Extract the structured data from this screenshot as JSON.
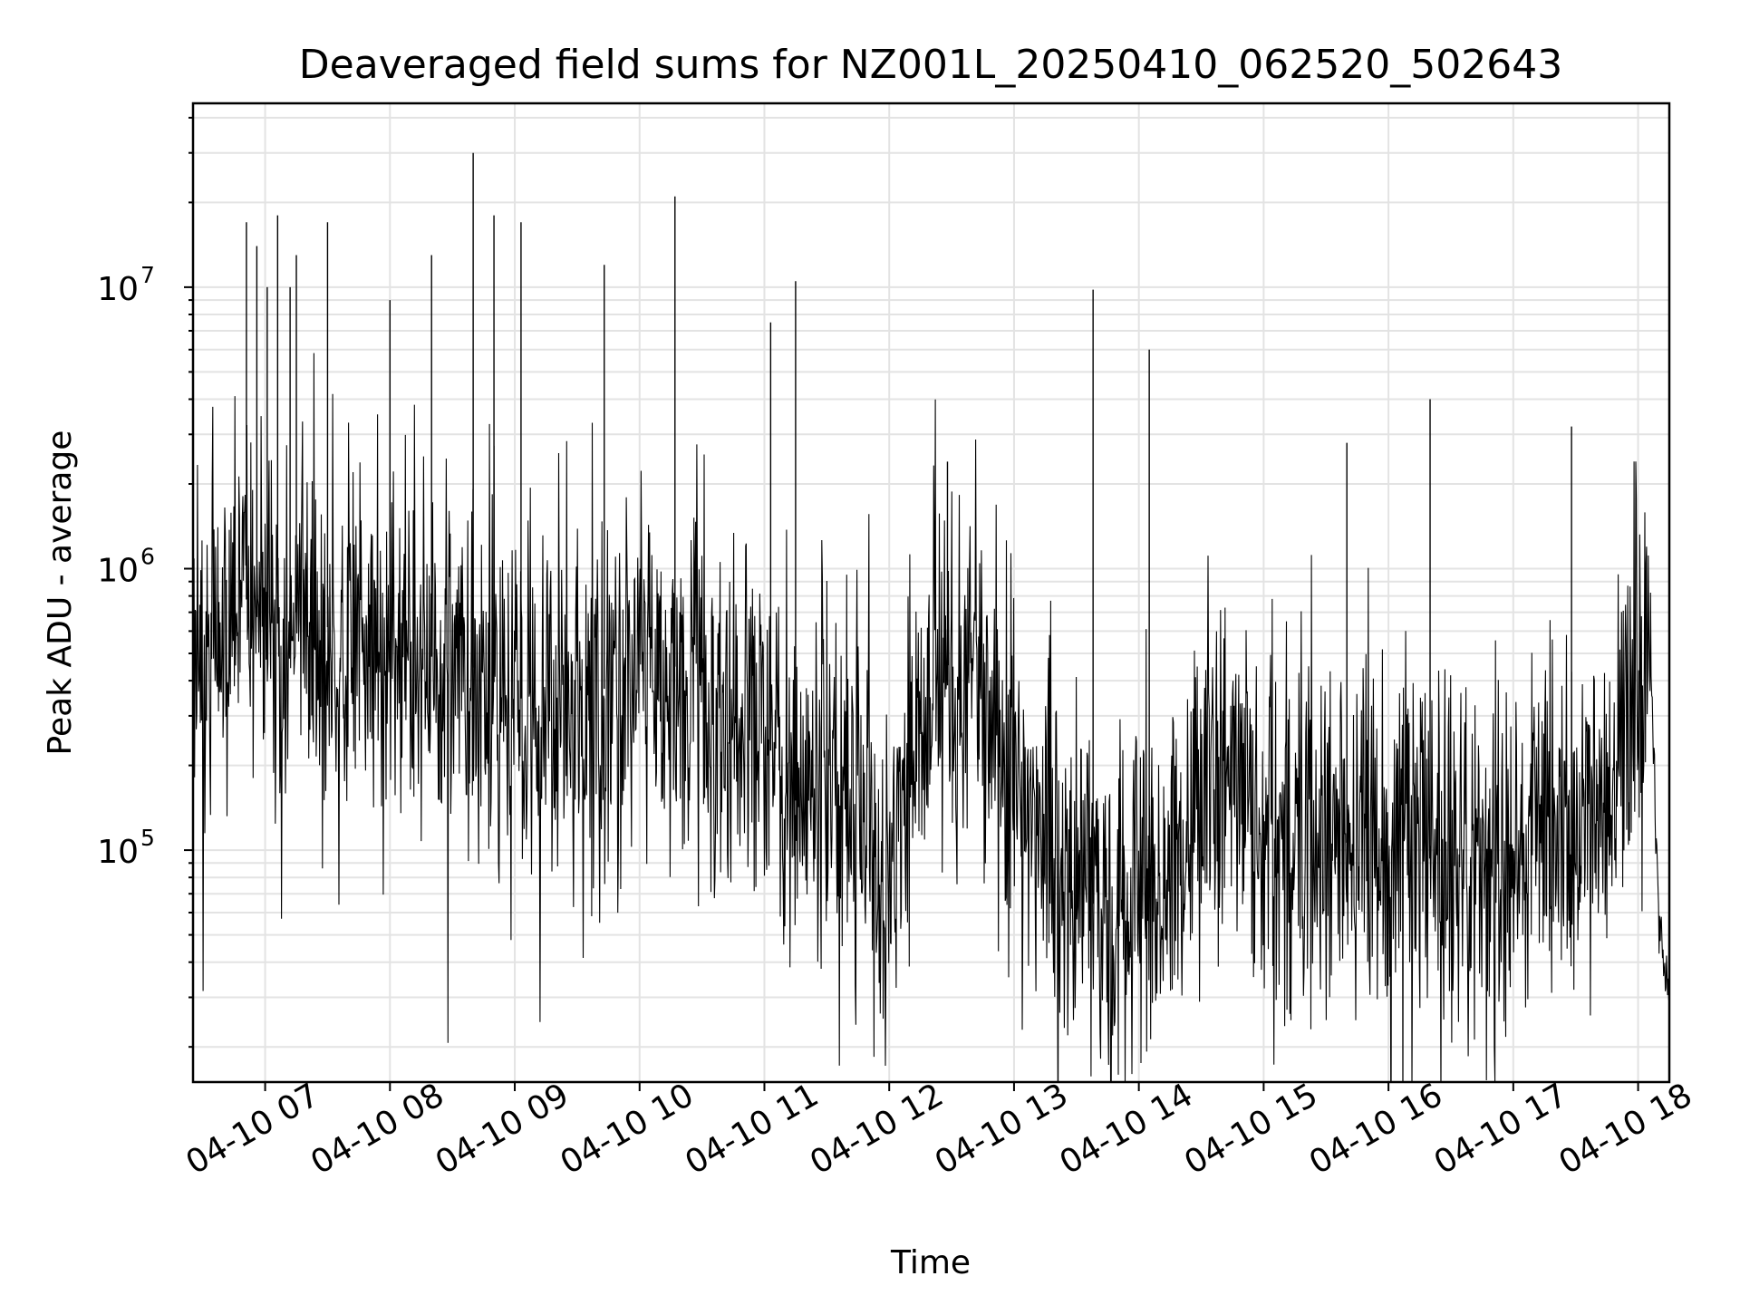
{
  "chart_data": {
    "type": "line",
    "title": "Deaveraged field sums for NZ001L_20250410_062520_502643",
    "xlabel": "Time",
    "ylabel": "Peak ADU - average",
    "yscale": "log",
    "ylim": [
      15000,
      45000000
    ],
    "xlim": [
      "2025-04-10 06:25:20",
      "2025-04-10 18:15:00"
    ],
    "grid": true,
    "line_color": "#000000",
    "x_ticks": [
      {
        "at": "2025-04-10 07:00",
        "label": "04-10 07"
      },
      {
        "at": "2025-04-10 08:00",
        "label": "04-10 08"
      },
      {
        "at": "2025-04-10 09:00",
        "label": "04-10 09"
      },
      {
        "at": "2025-04-10 10:00",
        "label": "04-10 10"
      },
      {
        "at": "2025-04-10 11:00",
        "label": "04-10 11"
      },
      {
        "at": "2025-04-10 12:00",
        "label": "04-10 12"
      },
      {
        "at": "2025-04-10 13:00",
        "label": "04-10 13"
      },
      {
        "at": "2025-04-10 14:00",
        "label": "04-10 14"
      },
      {
        "at": "2025-04-10 15:00",
        "label": "04-10 15"
      },
      {
        "at": "2025-04-10 16:00",
        "label": "04-10 16"
      },
      {
        "at": "2025-04-10 17:00",
        "label": "04-10 17"
      },
      {
        "at": "2025-04-10 18:00",
        "label": "04-10 18"
      }
    ],
    "y_ticks": [
      {
        "value": 100000,
        "base": "10",
        "exp": "5"
      },
      {
        "value": 1000000,
        "base": "10",
        "exp": "6"
      },
      {
        "value": 10000000,
        "base": "10",
        "exp": "7"
      }
    ],
    "series": [
      {
        "x": [
          "2025-04-10 06:25",
          "2025-04-10 06:30",
          "2025-04-10 06:40",
          "2025-04-10 06:50",
          "2025-04-10 07:00",
          "2025-04-10 07:15",
          "2025-04-10 07:30",
          "2025-04-10 07:45",
          "2025-04-10 08:00",
          "2025-04-10 08:15",
          "2025-04-10 08:30",
          "2025-04-10 08:45",
          "2025-04-10 09:00",
          "2025-04-10 09:15",
          "2025-04-10 09:30",
          "2025-04-10 09:45",
          "2025-04-10 10:00",
          "2025-04-10 10:15",
          "2025-04-10 10:30",
          "2025-04-10 10:45",
          "2025-04-10 11:00",
          "2025-04-10 11:15",
          "2025-04-10 11:30",
          "2025-04-10 11:45",
          "2025-04-10 12:00",
          "2025-04-10 12:15",
          "2025-04-10 12:30",
          "2025-04-10 12:45",
          "2025-04-10 13:00",
          "2025-04-10 13:15",
          "2025-04-10 13:30",
          "2025-04-10 13:45",
          "2025-04-10 14:00",
          "2025-04-10 14:15",
          "2025-04-10 14:30",
          "2025-04-10 14:45",
          "2025-04-10 15:00",
          "2025-04-10 15:15",
          "2025-04-10 15:30",
          "2025-04-10 15:45",
          "2025-04-10 16:00",
          "2025-04-10 16:15",
          "2025-04-10 16:30",
          "2025-04-10 16:45",
          "2025-04-10 17:00",
          "2025-04-10 17:15",
          "2025-04-10 17:30",
          "2025-04-10 17:45",
          "2025-04-10 18:00",
          "2025-04-10 18:05",
          "2025-04-10 18:10",
          "2025-04-10 18:15"
        ],
        "y": [
          480000,
          600000,
          620000,
          800000,
          600000,
          700000,
          620000,
          600000,
          520000,
          480000,
          500000,
          420000,
          350000,
          330000,
          340000,
          380000,
          480000,
          460000,
          380000,
          350000,
          250000,
          150000,
          200000,
          120000,
          80000,
          300000,
          400000,
          350000,
          180000,
          120000,
          70000,
          60000,
          65000,
          80000,
          150000,
          180000,
          140000,
          110000,
          120000,
          100000,
          90000,
          100000,
          85000,
          80000,
          95000,
          110000,
          120000,
          150000,
          350000,
          900000,
          60000,
          27000
        ],
        "spikes": [
          {
            "x": "2025-04-10 06:51",
            "y": 17000000
          },
          {
            "x": "2025-04-10 06:56",
            "y": 14000000
          },
          {
            "x": "2025-04-10 07:01",
            "y": 10000000
          },
          {
            "x": "2025-04-10 07:06",
            "y": 18000000
          },
          {
            "x": "2025-04-10 07:12",
            "y": 10000000
          },
          {
            "x": "2025-04-10 07:15",
            "y": 13000000
          },
          {
            "x": "2025-04-10 07:30",
            "y": 17000000
          },
          {
            "x": "2025-04-10 08:00",
            "y": 9000000
          },
          {
            "x": "2025-04-10 08:20",
            "y": 13000000
          },
          {
            "x": "2025-04-10 08:40",
            "y": 30000000
          },
          {
            "x": "2025-04-10 08:50",
            "y": 18000000
          },
          {
            "x": "2025-04-10 09:03",
            "y": 17000000
          },
          {
            "x": "2025-04-10 09:43",
            "y": 12000000
          },
          {
            "x": "2025-04-10 10:17",
            "y": 21000000
          },
          {
            "x": "2025-04-10 11:03",
            "y": 7500000
          },
          {
            "x": "2025-04-10 11:15",
            "y": 10500000
          },
          {
            "x": "2025-04-10 12:28",
            "y": 2400000
          },
          {
            "x": "2025-04-10 13:38",
            "y": 9800000
          },
          {
            "x": "2025-04-10 14:05",
            "y": 6000000
          },
          {
            "x": "2025-04-10 15:40",
            "y": 2800000
          },
          {
            "x": "2025-04-10 16:20",
            "y": 4000000
          },
          {
            "x": "2025-04-10 17:28",
            "y": 3200000
          }
        ]
      }
    ]
  }
}
